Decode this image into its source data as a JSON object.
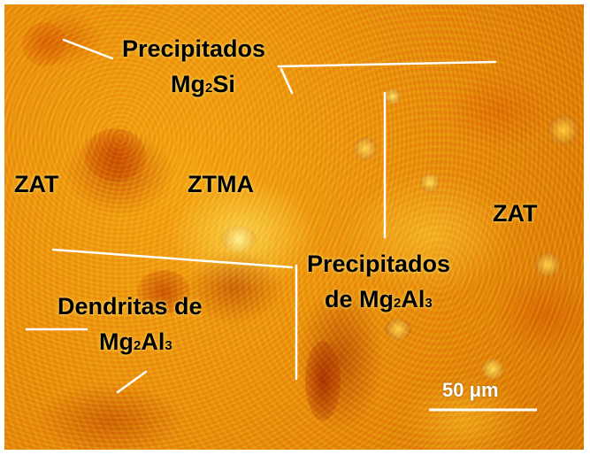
{
  "labels": {
    "precip_si_line1": "Precipitados",
    "precip_si_mg": "Mg",
    "precip_si_sub": "2",
    "precip_si_tail": "Si",
    "zat_left": "ZAT",
    "ztma": "ZTMA",
    "zat_right": "ZAT",
    "precip_al_line1": "Precipitados",
    "precip_al_prefix": "de Mg",
    "precip_al_sub1": "2",
    "precip_al_mid": "Al",
    "precip_al_sub2": "3",
    "dend_line1": "Dendritas de",
    "dend_mg": "Mg",
    "dend_sub1": "2",
    "dend_mid": "Al",
    "dend_sub2": "3"
  },
  "scale_bar": {
    "label": "50 μm"
  },
  "colors": {
    "background_orange": "#e48a0e",
    "annotation_lines": "#ffffff",
    "label_text": "#000000"
  }
}
